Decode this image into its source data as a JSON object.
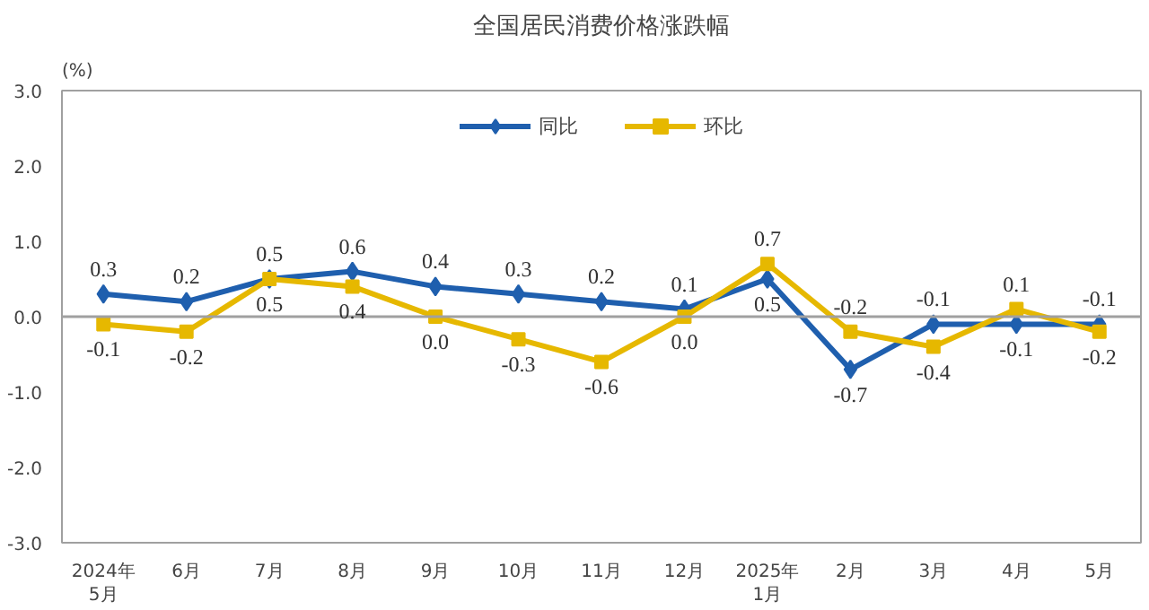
{
  "chart_data": {
    "type": "line",
    "title": "全国居民消费价格涨跌幅",
    "ylabel": "(%)",
    "categories": [
      "2024年\n5月",
      "6月",
      "7月",
      "8月",
      "9月",
      "10月",
      "11月",
      "12月",
      "2025年\n1月",
      "2月",
      "3月",
      "4月",
      "5月"
    ],
    "series": [
      {
        "name": "同比",
        "color": "#1f5fae",
        "marker": "diamond",
        "values": [
          0.3,
          0.2,
          0.5,
          0.6,
          0.4,
          0.3,
          0.2,
          0.1,
          0.5,
          -0.7,
          -0.1,
          -0.1,
          -0.1
        ],
        "value_labels": [
          "0.3",
          "0.2",
          "0.5",
          "0.6",
          "0.4",
          "0.3",
          "0.2",
          "0.1",
          "0.5",
          "-0.7",
          "-0.1",
          "-0.1",
          "-0.1"
        ]
      },
      {
        "name": "环比",
        "color": "#e6b800",
        "marker": "square",
        "values": [
          -0.1,
          -0.2,
          0.5,
          0.4,
          0.0,
          -0.3,
          -0.6,
          0.0,
          0.7,
          -0.2,
          -0.4,
          0.1,
          -0.2
        ],
        "value_labels": [
          "-0.1",
          "-0.2",
          "0.5",
          "0.4",
          "0.0",
          "-0.3",
          "-0.6",
          "0.0",
          "0.7",
          "-0.2",
          "-0.4",
          "0.1",
          "-0.2"
        ]
      }
    ],
    "ylim": [
      -3,
      3
    ],
    "yticks": [
      {
        "value": -3,
        "label": "-3.0"
      },
      {
        "value": -2,
        "label": "-2.0"
      },
      {
        "value": -1,
        "label": "-1.0"
      },
      {
        "value": 0,
        "label": "0.0"
      },
      {
        "value": 1,
        "label": "1.0"
      },
      {
        "value": 2,
        "label": "2.0"
      },
      {
        "value": 3,
        "label": "3.0"
      }
    ],
    "ref_lines": [
      {
        "axis": "y",
        "value": 0,
        "color": "#a0a0a0"
      }
    ],
    "legend": "top",
    "grid": false,
    "line_style": "solid"
  }
}
